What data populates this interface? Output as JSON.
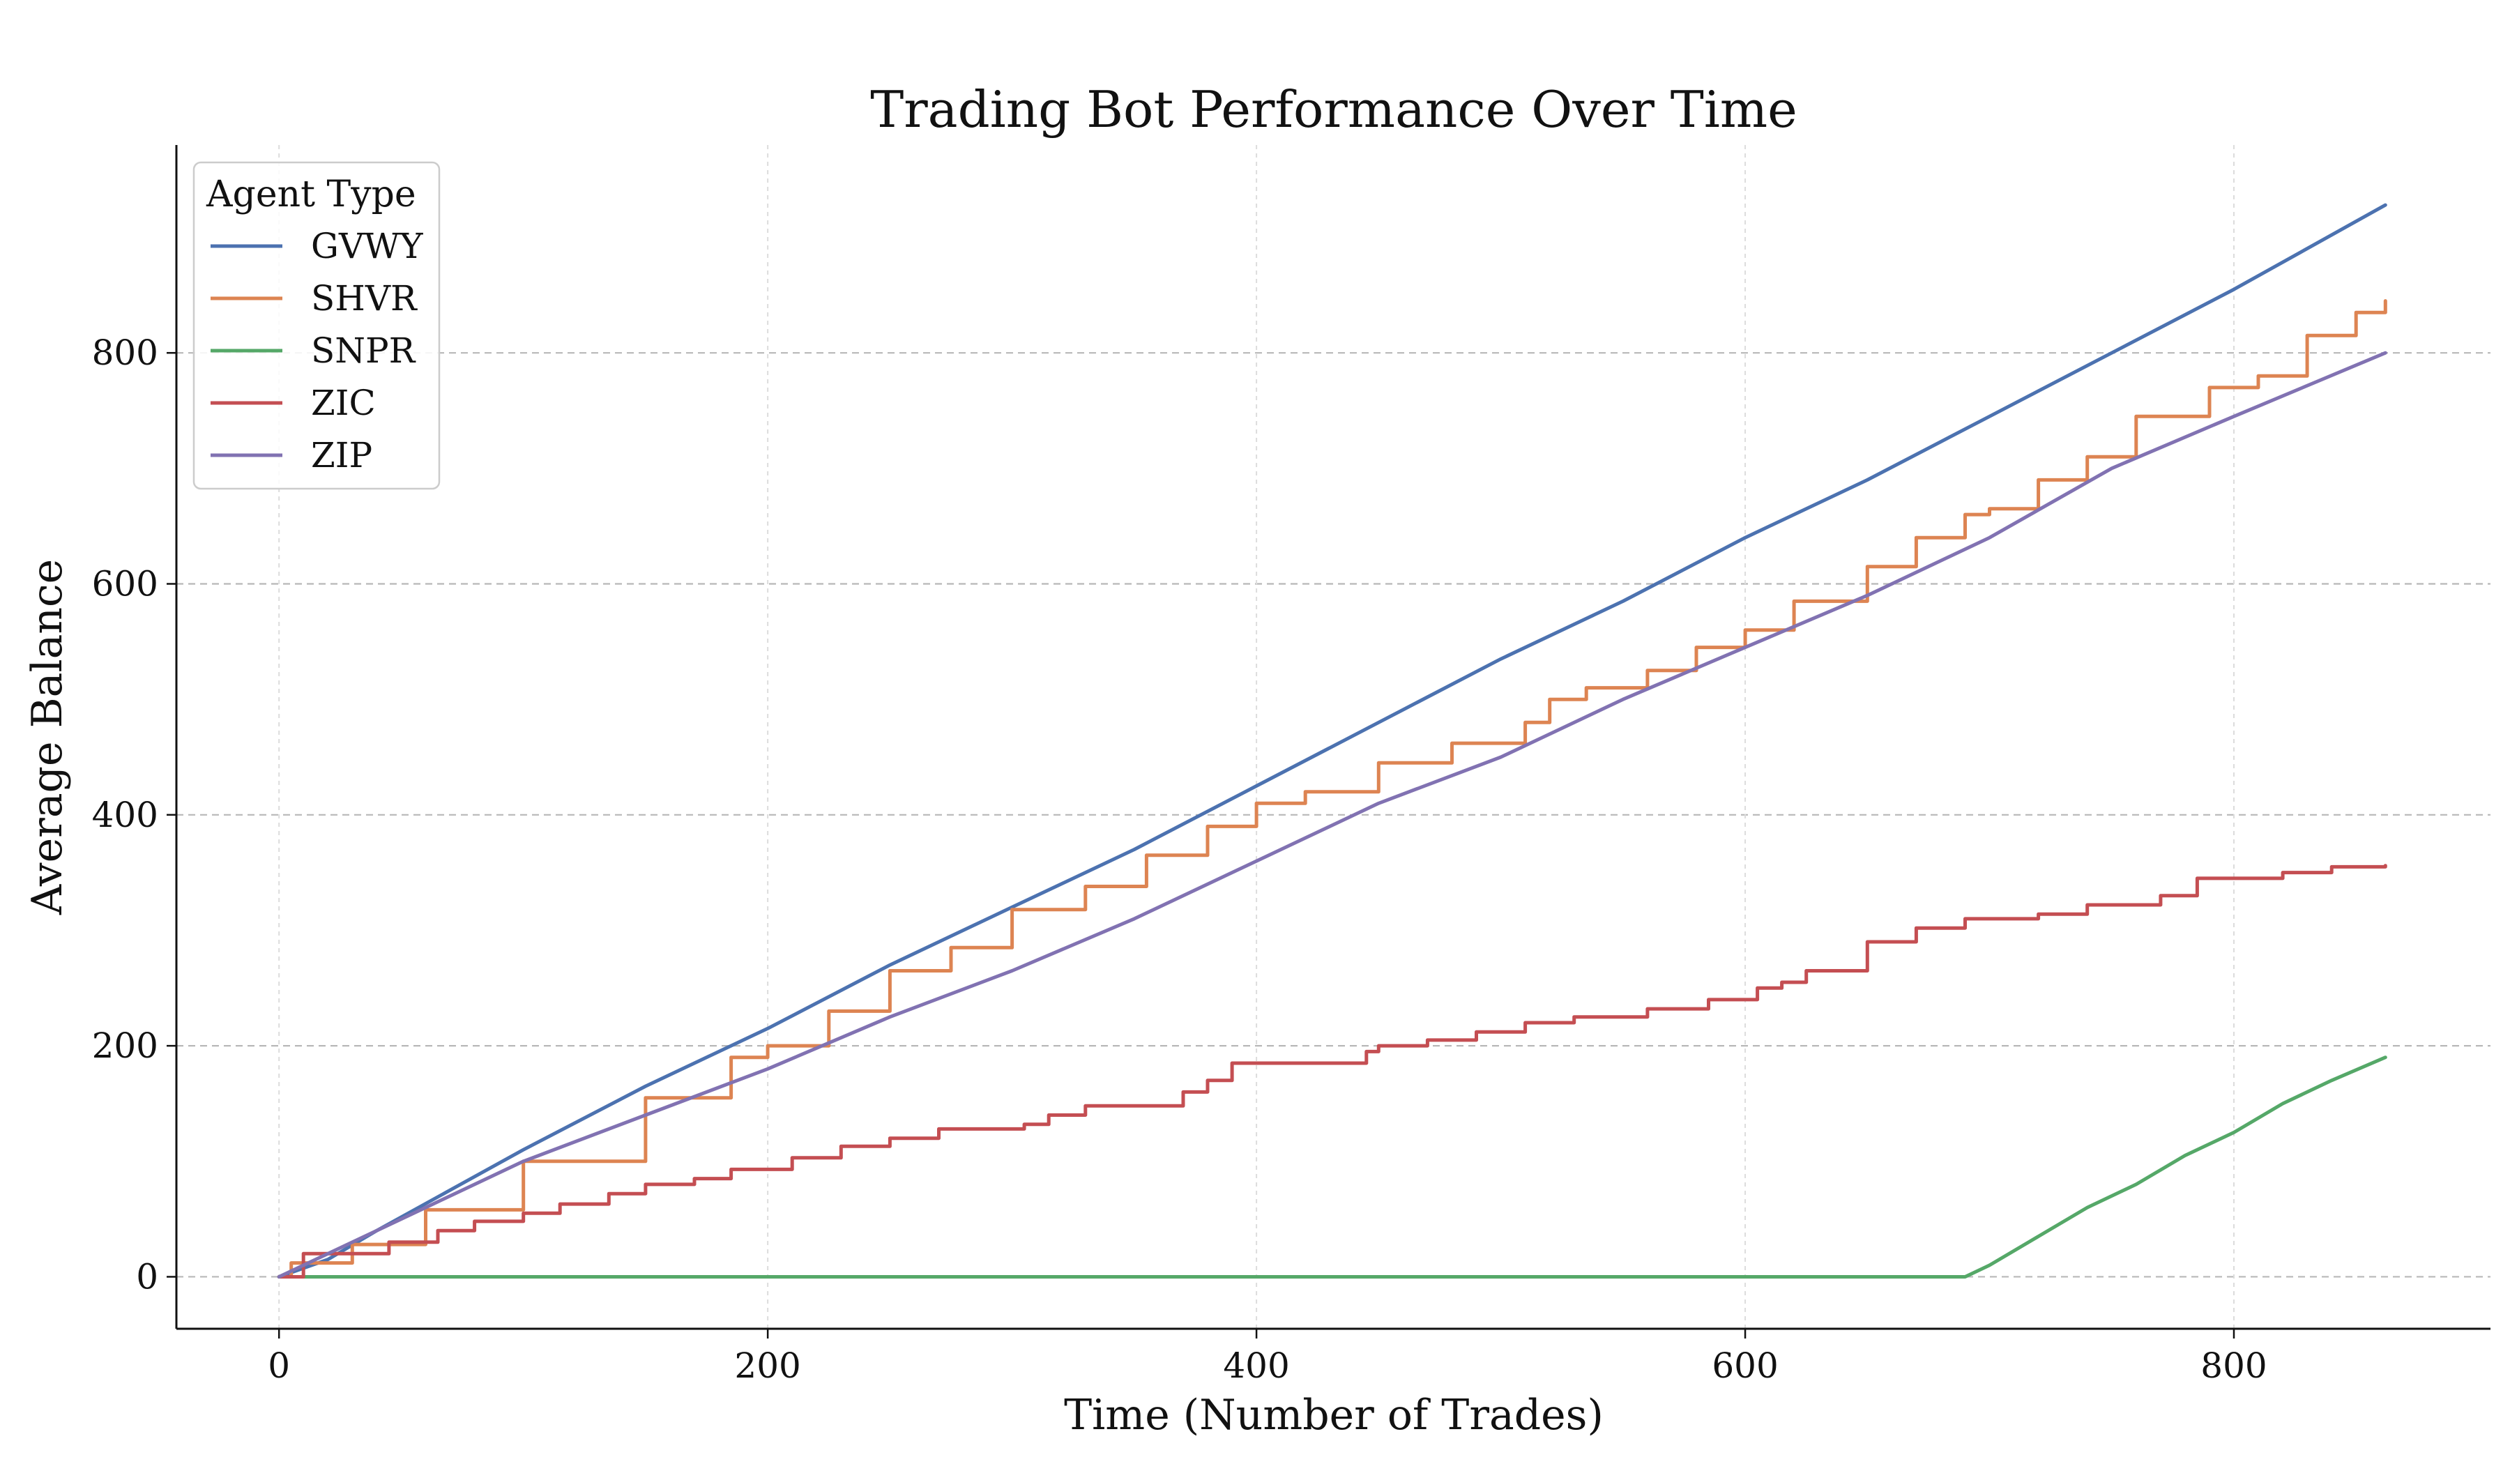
{
  "chart_data": {
    "type": "line",
    "title": "Trading Bot Performance Over Time",
    "xlabel": "Time (Number of Trades)",
    "ylabel": "Average Balance",
    "xlim": [
      -42,
      905
    ],
    "ylim": [
      -45,
      980
    ],
    "xticks": [
      0,
      200,
      400,
      600,
      800
    ],
    "yticks": [
      0,
      200,
      400,
      600,
      800
    ],
    "grid": "on",
    "legend": {
      "title": "Agent Type",
      "placement": "top-left"
    },
    "series": [
      {
        "name": "GVWY",
        "color": "#4c72b0",
        "step": false,
        "points": [
          [
            0,
            0
          ],
          [
            20,
            15
          ],
          [
            40,
            40
          ],
          [
            70,
            75
          ],
          [
            100,
            110
          ],
          [
            150,
            165
          ],
          [
            200,
            215
          ],
          [
            250,
            270
          ],
          [
            300,
            320
          ],
          [
            350,
            370
          ],
          [
            400,
            425
          ],
          [
            450,
            480
          ],
          [
            500,
            535
          ],
          [
            550,
            585
          ],
          [
            600,
            640
          ],
          [
            650,
            690
          ],
          [
            700,
            745
          ],
          [
            750,
            800
          ],
          [
            800,
            855
          ],
          [
            862,
            928
          ]
        ]
      },
      {
        "name": "SHVR",
        "color": "#dd8452",
        "step": true,
        "points": [
          [
            0,
            0
          ],
          [
            5,
            12
          ],
          [
            30,
            28
          ],
          [
            60,
            58
          ],
          [
            100,
            100
          ],
          [
            150,
            155
          ],
          [
            185,
            190
          ],
          [
            200,
            200
          ],
          [
            225,
            230
          ],
          [
            250,
            265
          ],
          [
            275,
            285
          ],
          [
            300,
            318
          ],
          [
            330,
            338
          ],
          [
            355,
            365
          ],
          [
            380,
            390
          ],
          [
            400,
            410
          ],
          [
            420,
            420
          ],
          [
            450,
            445
          ],
          [
            480,
            462
          ],
          [
            510,
            480
          ],
          [
            520,
            500
          ],
          [
            535,
            510
          ],
          [
            560,
            525
          ],
          [
            580,
            545
          ],
          [
            600,
            560
          ],
          [
            620,
            585
          ],
          [
            650,
            615
          ],
          [
            670,
            640
          ],
          [
            690,
            660
          ],
          [
            700,
            665
          ],
          [
            720,
            690
          ],
          [
            740,
            710
          ],
          [
            760,
            745
          ],
          [
            790,
            770
          ],
          [
            810,
            780
          ],
          [
            830,
            815
          ],
          [
            850,
            835
          ],
          [
            862,
            845
          ]
        ]
      },
      {
        "name": "SNPR",
        "color": "#55a868",
        "step": false,
        "points": [
          [
            0,
            0
          ],
          [
            690,
            0
          ],
          [
            700,
            10
          ],
          [
            720,
            35
          ],
          [
            740,
            60
          ],
          [
            760,
            80
          ],
          [
            780,
            105
          ],
          [
            800,
            125
          ],
          [
            820,
            150
          ],
          [
            840,
            170
          ],
          [
            862,
            190
          ]
        ]
      },
      {
        "name": "ZIC",
        "color": "#c44e52",
        "step": true,
        "points": [
          [
            0,
            0
          ],
          [
            10,
            20
          ],
          [
            30,
            20
          ],
          [
            45,
            30
          ],
          [
            65,
            40
          ],
          [
            80,
            48
          ],
          [
            100,
            55
          ],
          [
            115,
            63
          ],
          [
            135,
            72
          ],
          [
            150,
            80
          ],
          [
            170,
            85
          ],
          [
            185,
            93
          ],
          [
            210,
            103
          ],
          [
            230,
            113
          ],
          [
            250,
            120
          ],
          [
            270,
            128
          ],
          [
            305,
            132
          ],
          [
            315,
            140
          ],
          [
            330,
            148
          ],
          [
            370,
            160
          ],
          [
            380,
            170
          ],
          [
            390,
            185
          ],
          [
            410,
            185
          ],
          [
            445,
            195
          ],
          [
            450,
            200
          ],
          [
            470,
            205
          ],
          [
            490,
            212
          ],
          [
            510,
            220
          ],
          [
            530,
            225
          ],
          [
            560,
            232
          ],
          [
            585,
            240
          ],
          [
            605,
            250
          ],
          [
            615,
            255
          ],
          [
            625,
            265
          ],
          [
            650,
            290
          ],
          [
            670,
            302
          ],
          [
            690,
            310
          ],
          [
            720,
            314
          ],
          [
            740,
            322
          ],
          [
            770,
            330
          ],
          [
            785,
            345
          ],
          [
            820,
            350
          ],
          [
            840,
            355
          ],
          [
            862,
            356
          ]
        ]
      },
      {
        "name": "ZIP",
        "color": "#8172b2",
        "step": false,
        "points": [
          [
            0,
            0
          ],
          [
            30,
            30
          ],
          [
            60,
            60
          ],
          [
            100,
            100
          ],
          [
            150,
            140
          ],
          [
            200,
            180
          ],
          [
            250,
            225
          ],
          [
            300,
            265
          ],
          [
            350,
            310
          ],
          [
            400,
            360
          ],
          [
            450,
            410
          ],
          [
            500,
            450
          ],
          [
            550,
            500
          ],
          [
            600,
            545
          ],
          [
            650,
            590
          ],
          [
            700,
            640
          ],
          [
            750,
            700
          ],
          [
            800,
            745
          ],
          [
            862,
            800
          ]
        ]
      }
    ]
  }
}
